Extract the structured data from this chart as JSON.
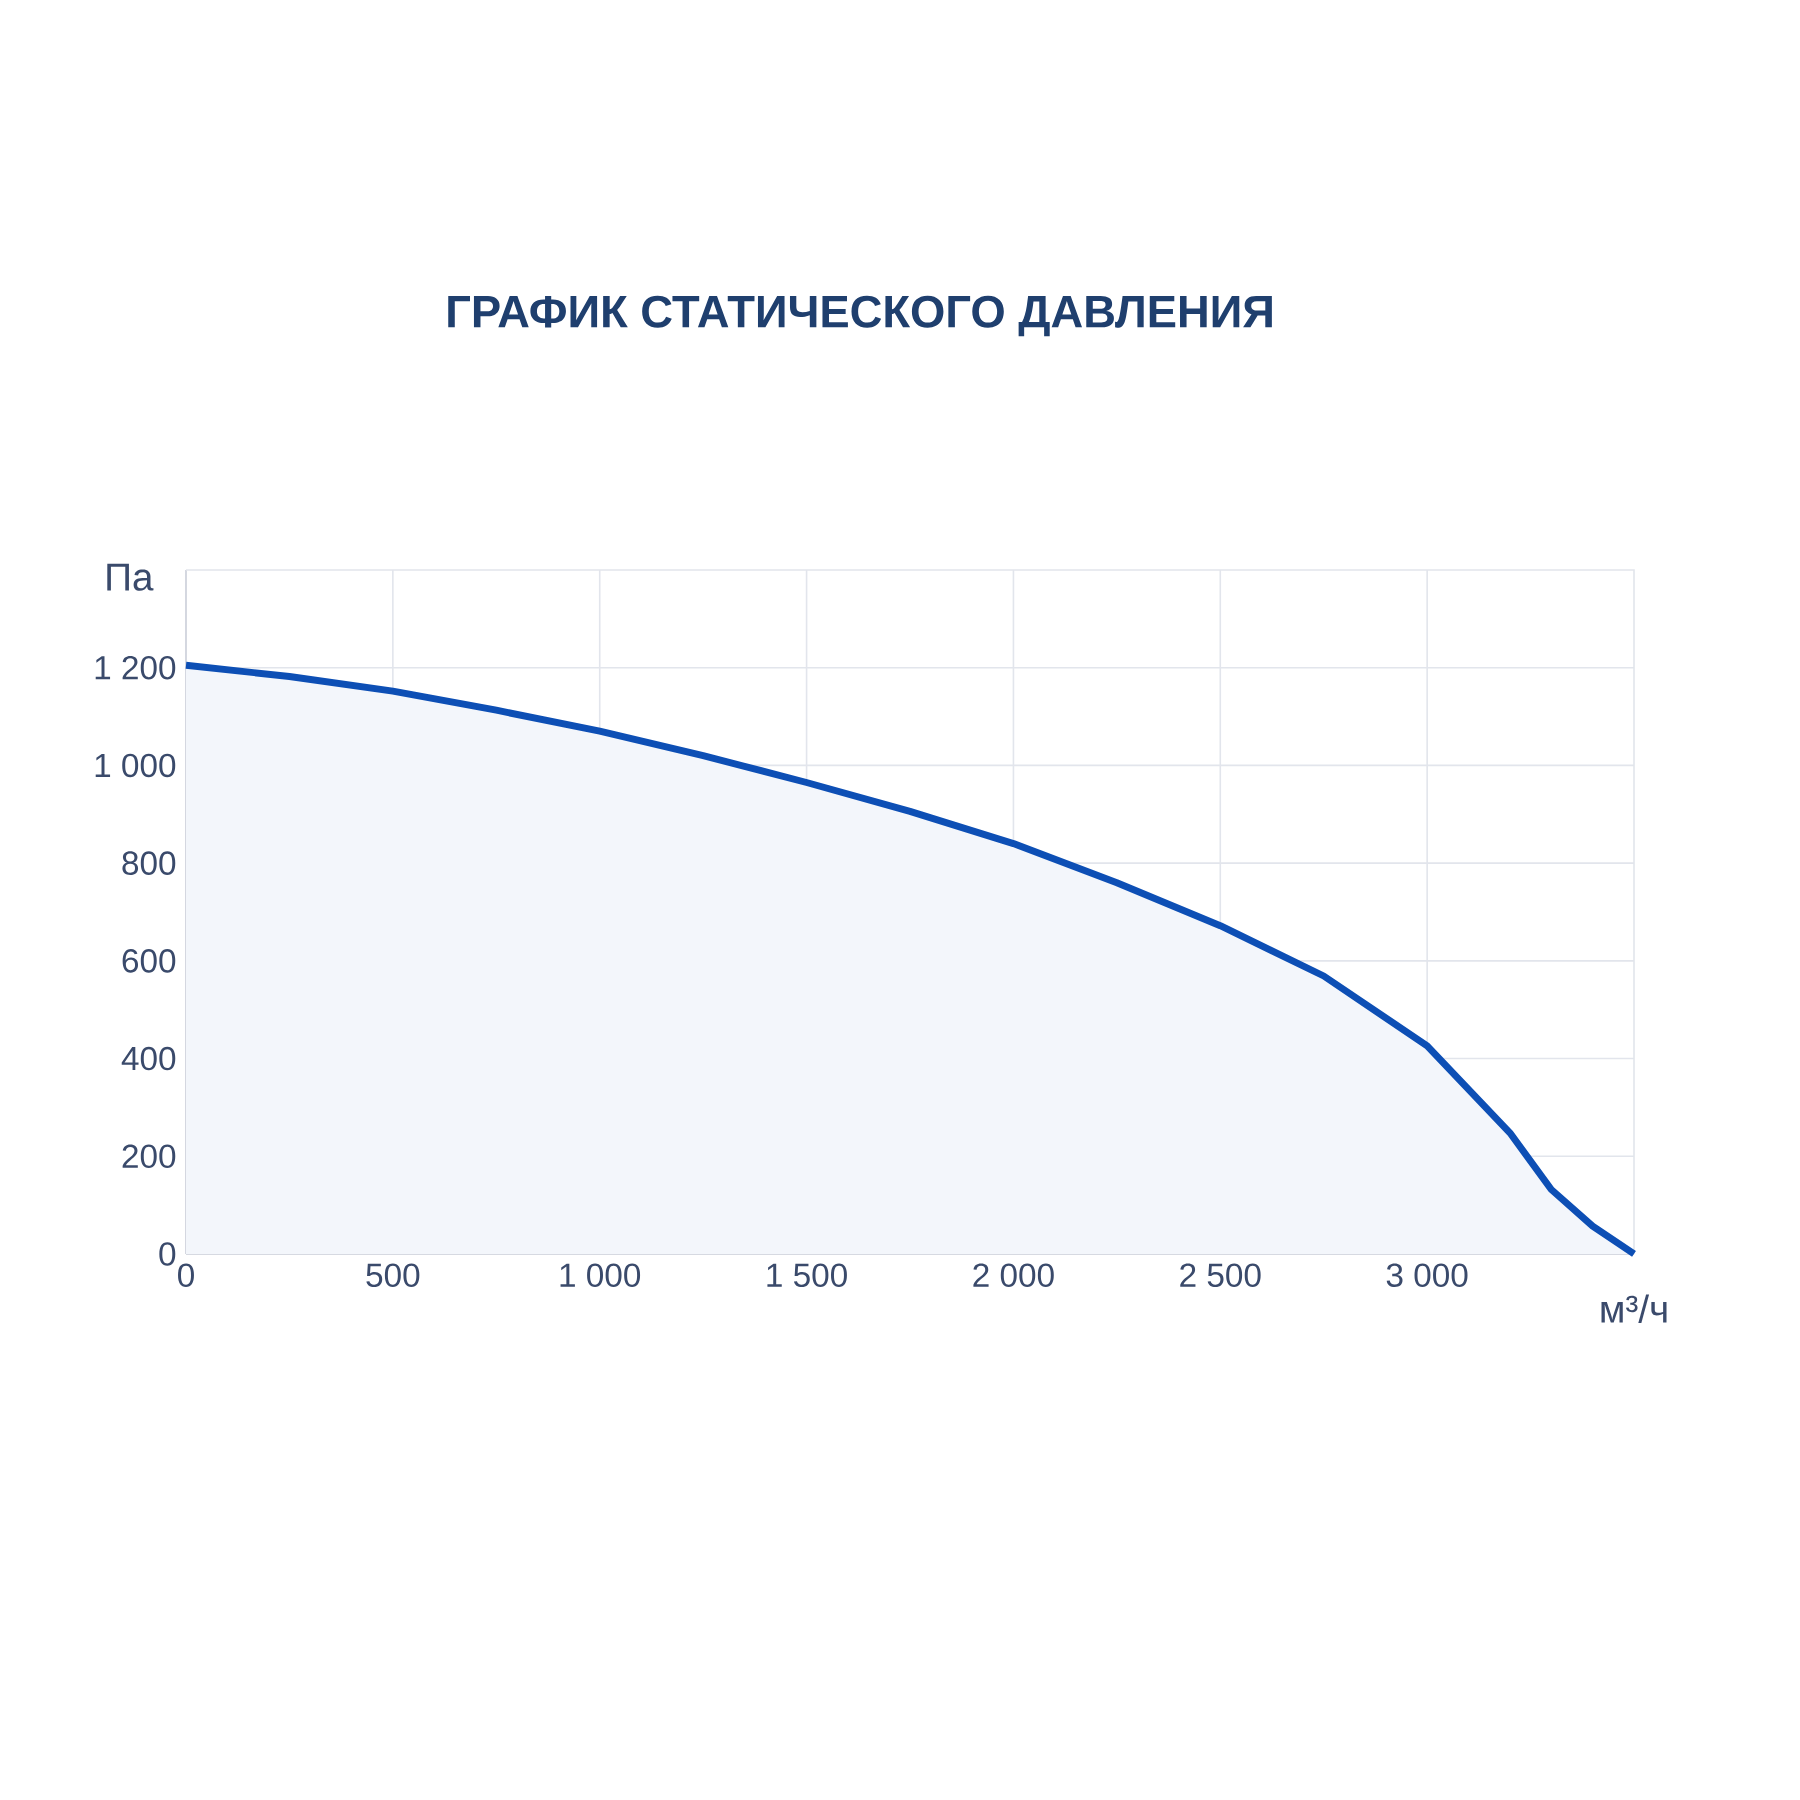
{
  "chart_data": {
    "type": "area",
    "title": "ГРАФИК СТАТИЧЕСКОГО ДАВЛЕНИЯ",
    "xlabel": "м³/ч",
    "ylabel": "Па",
    "x": [
      0,
      250,
      500,
      750,
      1000,
      1250,
      1500,
      1750,
      2000,
      2250,
      2500,
      2750,
      3000,
      3100,
      3200,
      3300,
      3400,
      3500
    ],
    "series": [
      {
        "color": "#0d4fb5",
        "values": [
          1205,
          1182,
          1152,
          1113,
          1070,
          1020,
          965,
          906,
          840,
          760,
          672,
          569,
          426,
          337,
          248,
          132,
          57,
          0
        ]
      }
    ],
    "xlim": [
      0,
      3500
    ],
    "ylim": [
      0,
      1400
    ],
    "xticks": [
      0,
      500,
      {
        "value": 1000,
        "label": "1 000"
      },
      {
        "value": 1500,
        "label": "1 500"
      },
      {
        "value": 2000,
        "label": "2 000"
      },
      {
        "value": 2500,
        "label": "2 500"
      },
      {
        "value": 3000,
        "label": "3 000"
      }
    ],
    "yticks": [
      0,
      200,
      400,
      600,
      800,
      {
        "value": 1000,
        "label": "1 000"
      },
      {
        "value": 1200,
        "label": "1 200"
      }
    ],
    "grid": true
  }
}
